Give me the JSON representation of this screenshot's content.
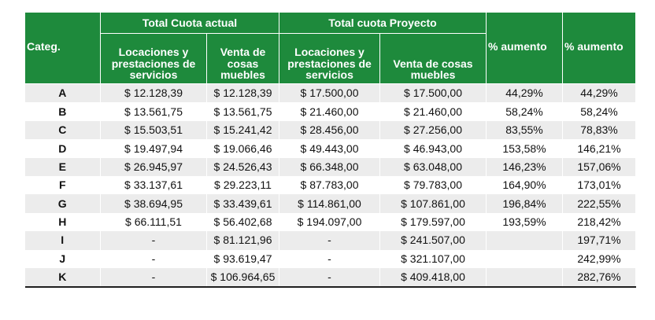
{
  "header": {
    "group_actual": "Total Cuota actual",
    "group_proyecto": "Total cuota Proyecto",
    "categ": "Categ.",
    "col_locaciones_actual": "Locaciones y prestaciones de servicios",
    "col_venta_actual": "Venta de cosas muebles",
    "col_locaciones_proyecto": "Locaciones y prestaciones de servicios",
    "col_venta_proyecto": "Venta de cosas muebles",
    "col_aumento_1": "% aumento",
    "col_aumento_2": "% aumento"
  },
  "rows": [
    {
      "cat": "A",
      "loc_act": "$ 12.128,39",
      "ven_act": "$ 12.128,39",
      "loc_proy": "$ 17.500,00",
      "ven_proy": "$ 17.500,00",
      "aum1": "44,29%",
      "aum2": "44,29%"
    },
    {
      "cat": "B",
      "loc_act": "$ 13.561,75",
      "ven_act": "$ 13.561,75",
      "loc_proy": "$ 21.460,00",
      "ven_proy": "$ 21.460,00",
      "aum1": "58,24%",
      "aum2": "58,24%"
    },
    {
      "cat": "C",
      "loc_act": "$ 15.503,51",
      "ven_act": "$ 15.241,42",
      "loc_proy": "$ 28.456,00",
      "ven_proy": "$ 27.256,00",
      "aum1": "83,55%",
      "aum2": "78,83%"
    },
    {
      "cat": "D",
      "loc_act": "$ 19.497,94",
      "ven_act": "$ 19.066,46",
      "loc_proy": "$ 49.443,00",
      "ven_proy": "$ 46.943,00",
      "aum1": "153,58%",
      "aum2": "146,21%"
    },
    {
      "cat": "E",
      "loc_act": "$ 26.945,97",
      "ven_act": "$ 24.526,43",
      "loc_proy": "$ 66.348,00",
      "ven_proy": "$ 63.048,00",
      "aum1": "146,23%",
      "aum2": "157,06%"
    },
    {
      "cat": "F",
      "loc_act": "$ 33.137,61",
      "ven_act": "$ 29.223,11",
      "loc_proy": "$ 87.783,00",
      "ven_proy": "$ 79.783,00",
      "aum1": "164,90%",
      "aum2": "173,01%"
    },
    {
      "cat": "G",
      "loc_act": "$ 38.694,95",
      "ven_act": "$ 33.439,61",
      "loc_proy": "$ 114.861,00",
      "ven_proy": "$ 107.861,00",
      "aum1": "196,84%",
      "aum2": "222,55%"
    },
    {
      "cat": "H",
      "loc_act": "$ 66.111,51",
      "ven_act": "$ 56.402,68",
      "loc_proy": "$ 194.097,00",
      "ven_proy": "$ 179.597,00",
      "aum1": "193,59%",
      "aum2": "218,42%"
    },
    {
      "cat": "I",
      "loc_act": "-",
      "ven_act": "$ 81.121,96",
      "loc_proy": "-",
      "ven_proy": "$ 241.507,00",
      "aum1": "",
      "aum2": "197,71%"
    },
    {
      "cat": "J",
      "loc_act": "-",
      "ven_act": "$ 93.619,47",
      "loc_proy": "-",
      "ven_proy": "$ 321.107,00",
      "aum1": "",
      "aum2": "242,99%"
    },
    {
      "cat": "K",
      "loc_act": "-",
      "ven_act": "$ 106.964,65",
      "loc_proy": "-",
      "ven_proy": "$ 409.418,00",
      "aum1": "",
      "aum2": "282,76%"
    }
  ]
}
